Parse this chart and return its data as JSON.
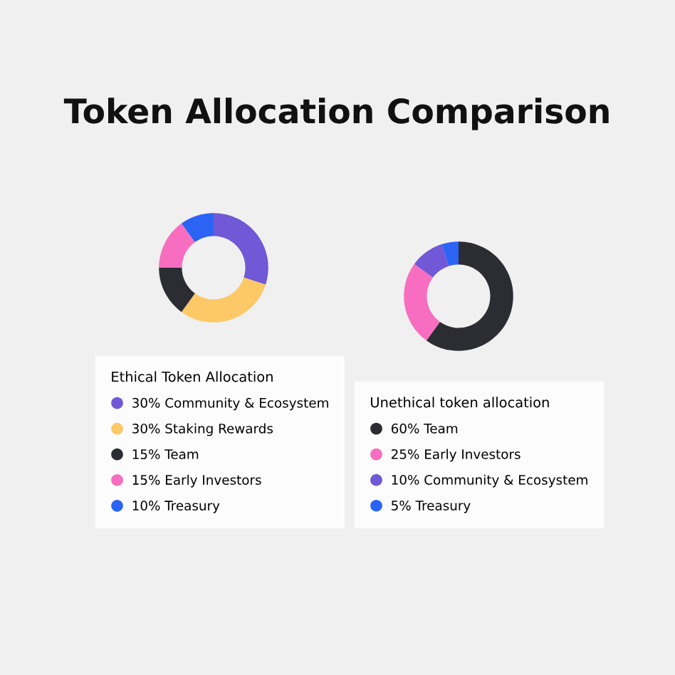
{
  "chart_data": [
    {
      "type": "donut",
      "title": "Token Allocation Comparison",
      "legend_title": "Ethical Token Allocation",
      "legend": "bottom",
      "categories": [
        "30% Community & Ecosystem",
        "30% Staking Rewards",
        "15% Team",
        "15% Early Investors",
        "10% Treasury"
      ],
      "values": [
        30,
        30,
        15,
        15,
        10
      ],
      "colors": [
        "#7058d6",
        "#fdc866",
        "#2b2d33",
        "#f76dbf",
        "#2b63f5"
      ]
    },
    {
      "type": "donut",
      "legend_title": "Unethical token allocation",
      "legend": "bottom",
      "categories": [
        "60% Team",
        "25% Early Investors",
        "10% Community & Ecosystem",
        "5% Treasury"
      ],
      "values": [
        60,
        25,
        10,
        5
      ],
      "colors": [
        "#2b2d33",
        "#f76dbf",
        "#7058d6",
        "#2b63f5"
      ]
    }
  ]
}
